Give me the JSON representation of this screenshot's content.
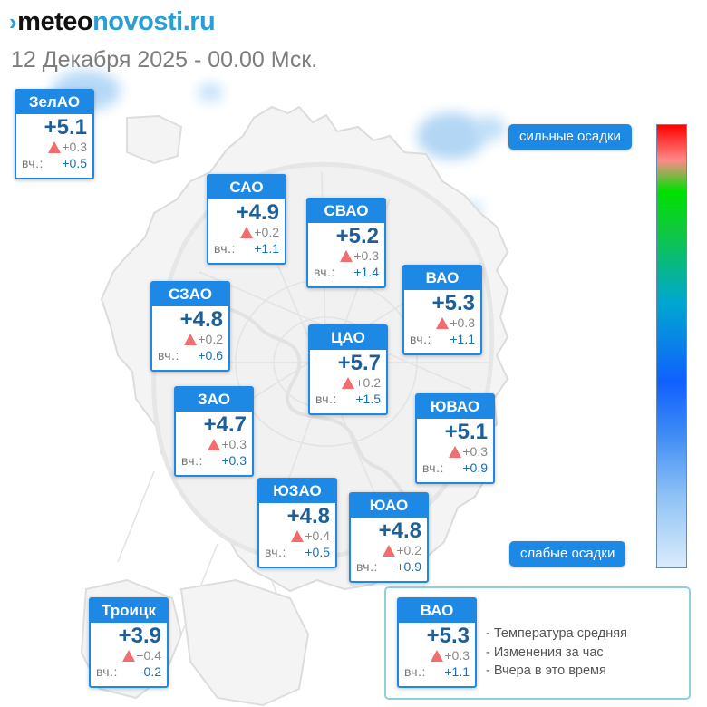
{
  "header": {
    "logo_prefix": "meteo",
    "logo_suffix": "novosti.ru",
    "subtitle": "12 Декабря 2025 - 00.00 Мск."
  },
  "yesterday_label": "вч.:",
  "districts": [
    {
      "id": "zelao",
      "name": "ЗелАО",
      "temp": "+5.1",
      "change": "+0.3",
      "yesterday": "+0.5"
    },
    {
      "id": "sao",
      "name": "САО",
      "temp": "+4.9",
      "change": "+0.2",
      "yesterday": "+1.1"
    },
    {
      "id": "svao",
      "name": "СВАО",
      "temp": "+5.2",
      "change": "+0.3",
      "yesterday": "+1.4"
    },
    {
      "id": "vao",
      "name": "ВАО",
      "temp": "+5.3",
      "change": "+0.3",
      "yesterday": "+1.1"
    },
    {
      "id": "szao",
      "name": "СЗАО",
      "temp": "+4.8",
      "change": "+0.2",
      "yesterday": "+0.6"
    },
    {
      "id": "cao",
      "name": "ЦАО",
      "temp": "+5.7",
      "change": "+0.2",
      "yesterday": "+1.5"
    },
    {
      "id": "zao",
      "name": "ЗАО",
      "temp": "+4.7",
      "change": "+0.3",
      "yesterday": "+0.3"
    },
    {
      "id": "yuvao",
      "name": "ЮВАО",
      "temp": "+5.1",
      "change": "+0.3",
      "yesterday": "+0.9"
    },
    {
      "id": "yuzao",
      "name": "ЮЗАО",
      "temp": "+4.8",
      "change": "+0.4",
      "yesterday": "+0.5"
    },
    {
      "id": "yuao",
      "name": "ЮАО",
      "temp": "+4.8",
      "change": "+0.2",
      "yesterday": "+0.9"
    },
    {
      "id": "troitsk",
      "name": "Троицк",
      "temp": "+3.9",
      "change": "+0.4",
      "yesterday": "-0.2"
    }
  ],
  "precip_scale": {
    "high_label": "сильные осадки",
    "low_label": "слабые осадки"
  },
  "legend": {
    "sample": {
      "name": "ВАО",
      "temp": "+5.3",
      "change": "+0.3",
      "yesterday": "+1.1"
    },
    "line1": "- Температура средняя",
    "line2": "- Изменения за час",
    "line3": "- Вчера в это время"
  },
  "colors": {
    "accent": "#1e88e5",
    "temperature_text": "#1f5f99",
    "change_up": "#f26d6d",
    "precip_light": "#bcdcf7"
  }
}
